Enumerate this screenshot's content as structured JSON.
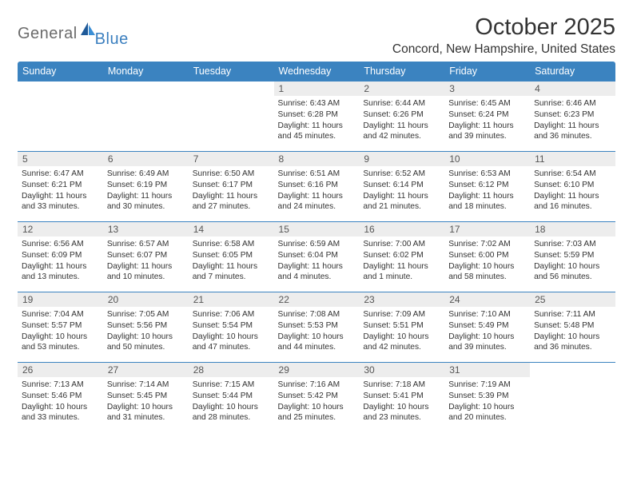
{
  "logo": {
    "general": "General",
    "blue": "Blue"
  },
  "title": "October 2025",
  "location": "Concord, New Hampshire, United States",
  "colors": {
    "header_bg": "#3b83c0",
    "header_text": "#ffffff",
    "daynum_bg": "#ededed",
    "text": "#333333",
    "logo_gray": "#6b6b6b",
    "logo_blue": "#3b7fbf",
    "border": "#3b83c0"
  },
  "weekdays": [
    "Sunday",
    "Monday",
    "Tuesday",
    "Wednesday",
    "Thursday",
    "Friday",
    "Saturday"
  ],
  "weeks": [
    [
      null,
      null,
      null,
      {
        "n": "1",
        "sr": "6:43 AM",
        "ss": "6:28 PM",
        "dl": "11 hours and 45 minutes."
      },
      {
        "n": "2",
        "sr": "6:44 AM",
        "ss": "6:26 PM",
        "dl": "11 hours and 42 minutes."
      },
      {
        "n": "3",
        "sr": "6:45 AM",
        "ss": "6:24 PM",
        "dl": "11 hours and 39 minutes."
      },
      {
        "n": "4",
        "sr": "6:46 AM",
        "ss": "6:23 PM",
        "dl": "11 hours and 36 minutes."
      }
    ],
    [
      {
        "n": "5",
        "sr": "6:47 AM",
        "ss": "6:21 PM",
        "dl": "11 hours and 33 minutes."
      },
      {
        "n": "6",
        "sr": "6:49 AM",
        "ss": "6:19 PM",
        "dl": "11 hours and 30 minutes."
      },
      {
        "n": "7",
        "sr": "6:50 AM",
        "ss": "6:17 PM",
        "dl": "11 hours and 27 minutes."
      },
      {
        "n": "8",
        "sr": "6:51 AM",
        "ss": "6:16 PM",
        "dl": "11 hours and 24 minutes."
      },
      {
        "n": "9",
        "sr": "6:52 AM",
        "ss": "6:14 PM",
        "dl": "11 hours and 21 minutes."
      },
      {
        "n": "10",
        "sr": "6:53 AM",
        "ss": "6:12 PM",
        "dl": "11 hours and 18 minutes."
      },
      {
        "n": "11",
        "sr": "6:54 AM",
        "ss": "6:10 PM",
        "dl": "11 hours and 16 minutes."
      }
    ],
    [
      {
        "n": "12",
        "sr": "6:56 AM",
        "ss": "6:09 PM",
        "dl": "11 hours and 13 minutes."
      },
      {
        "n": "13",
        "sr": "6:57 AM",
        "ss": "6:07 PM",
        "dl": "11 hours and 10 minutes."
      },
      {
        "n": "14",
        "sr": "6:58 AM",
        "ss": "6:05 PM",
        "dl": "11 hours and 7 minutes."
      },
      {
        "n": "15",
        "sr": "6:59 AM",
        "ss": "6:04 PM",
        "dl": "11 hours and 4 minutes."
      },
      {
        "n": "16",
        "sr": "7:00 AM",
        "ss": "6:02 PM",
        "dl": "11 hours and 1 minute."
      },
      {
        "n": "17",
        "sr": "7:02 AM",
        "ss": "6:00 PM",
        "dl": "10 hours and 58 minutes."
      },
      {
        "n": "18",
        "sr": "7:03 AM",
        "ss": "5:59 PM",
        "dl": "10 hours and 56 minutes."
      }
    ],
    [
      {
        "n": "19",
        "sr": "7:04 AM",
        "ss": "5:57 PM",
        "dl": "10 hours and 53 minutes."
      },
      {
        "n": "20",
        "sr": "7:05 AM",
        "ss": "5:56 PM",
        "dl": "10 hours and 50 minutes."
      },
      {
        "n": "21",
        "sr": "7:06 AM",
        "ss": "5:54 PM",
        "dl": "10 hours and 47 minutes."
      },
      {
        "n": "22",
        "sr": "7:08 AM",
        "ss": "5:53 PM",
        "dl": "10 hours and 44 minutes."
      },
      {
        "n": "23",
        "sr": "7:09 AM",
        "ss": "5:51 PM",
        "dl": "10 hours and 42 minutes."
      },
      {
        "n": "24",
        "sr": "7:10 AM",
        "ss": "5:49 PM",
        "dl": "10 hours and 39 minutes."
      },
      {
        "n": "25",
        "sr": "7:11 AM",
        "ss": "5:48 PM",
        "dl": "10 hours and 36 minutes."
      }
    ],
    [
      {
        "n": "26",
        "sr": "7:13 AM",
        "ss": "5:46 PM",
        "dl": "10 hours and 33 minutes."
      },
      {
        "n": "27",
        "sr": "7:14 AM",
        "ss": "5:45 PM",
        "dl": "10 hours and 31 minutes."
      },
      {
        "n": "28",
        "sr": "7:15 AM",
        "ss": "5:44 PM",
        "dl": "10 hours and 28 minutes."
      },
      {
        "n": "29",
        "sr": "7:16 AM",
        "ss": "5:42 PM",
        "dl": "10 hours and 25 minutes."
      },
      {
        "n": "30",
        "sr": "7:18 AM",
        "ss": "5:41 PM",
        "dl": "10 hours and 23 minutes."
      },
      {
        "n": "31",
        "sr": "7:19 AM",
        "ss": "5:39 PM",
        "dl": "10 hours and 20 minutes."
      },
      null
    ]
  ],
  "labels": {
    "sunrise": "Sunrise:",
    "sunset": "Sunset:",
    "daylight": "Daylight:"
  }
}
